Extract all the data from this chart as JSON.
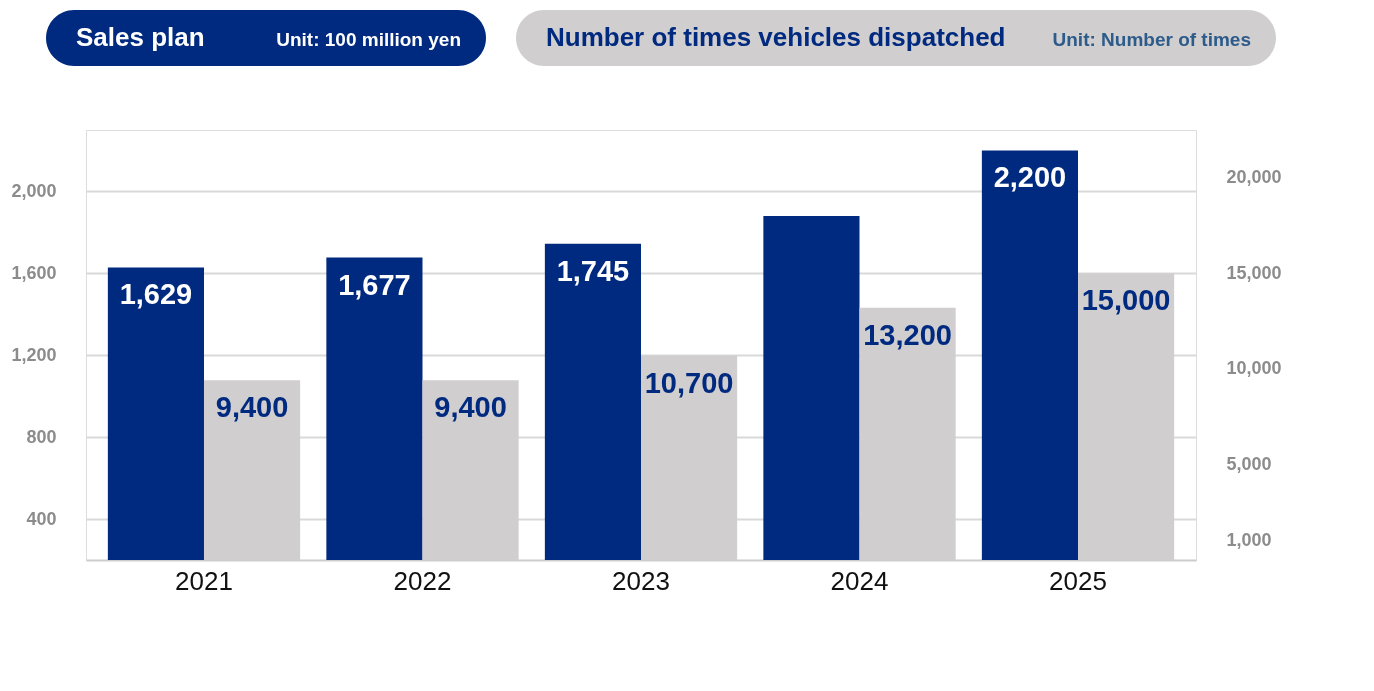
{
  "chart_data": {
    "type": "bar",
    "categories": [
      "2021",
      "2022",
      "2023",
      "2024",
      "2025"
    ],
    "series": [
      {
        "name": "Sales plan",
        "color": "#002a7f",
        "values": [
          1629,
          1677,
          1745,
          1880,
          2200
        ],
        "value_labels": [
          "1,629",
          "1,677",
          "1,745",
          null,
          "2,200"
        ]
      },
      {
        "name": "Number of times vehicles dispatched",
        "color": "#d0cecf",
        "axis": "y2",
        "values": [
          9400,
          9400,
          10700,
          13200,
          15000
        ],
        "value_labels": [
          "9,400",
          "9,400",
          "10,700",
          "13,200",
          "15,000"
        ]
      }
    ],
    "ylabel": "Unit: 100 million yen",
    "y2label": "Unit: Number of times",
    "ylim": [
      200,
      2300
    ],
    "yticks": [
      {
        "value": 400,
        "label": "400"
      },
      {
        "value": 800,
        "label": "800"
      },
      {
        "value": 1200,
        "label": "1,200"
      },
      {
        "value": 1600,
        "label": "1,600"
      },
      {
        "value": 2000,
        "label": "2,000"
      }
    ],
    "y2lim": [
      0,
      22500
    ],
    "y2ticks": [
      {
        "value": 1000,
        "label": "1,000"
      },
      {
        "value": 5000,
        "label": "5,000"
      },
      {
        "value": 10000,
        "label": "10,000"
      },
      {
        "value": 15000,
        "label": "15,000"
      },
      {
        "value": 20000,
        "label": "20,000"
      }
    ],
    "grid": "y",
    "legend": "top"
  }
}
